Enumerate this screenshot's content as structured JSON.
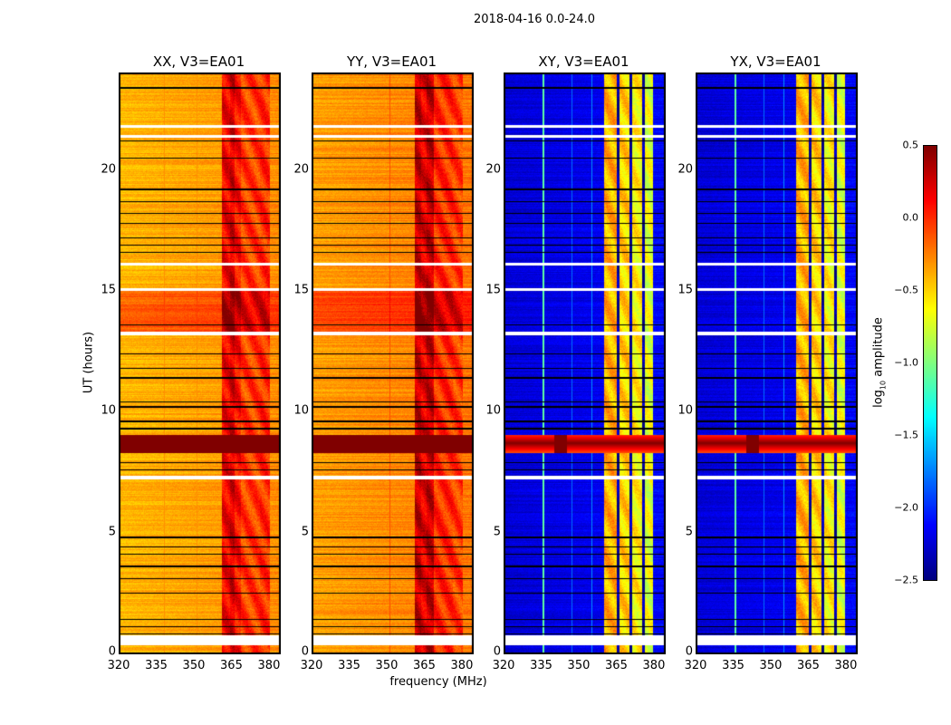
{
  "chart_data": {
    "type": "heatmap",
    "title": "2018-04-16 0.0-24.0",
    "xlabel": "frequency (MHz)",
    "ylabel": "UT (hours)",
    "xlim": [
      320,
      384
    ],
    "ylim": [
      0,
      24
    ],
    "xticks": [
      "320",
      "335",
      "350",
      "365",
      "380"
    ],
    "xtick_values": [
      320,
      335,
      350,
      365,
      380
    ],
    "yticks": [
      "0",
      "5",
      "10",
      "15",
      "20"
    ],
    "ytick_values": [
      0,
      5,
      10,
      15,
      20
    ],
    "colorbar": {
      "label_pre": "log",
      "label_sub": "10",
      "label_post": " amplitude",
      "vmin": -2.5,
      "vmax": 0.5,
      "ticks": [
        "0.5",
        "0.0",
        "−0.5",
        "−1.0",
        "−1.5",
        "−2.0",
        "−2.5"
      ],
      "tick_values": [
        0.5,
        0.0,
        -0.5,
        -1.0,
        -1.5,
        -2.0,
        -2.5
      ],
      "colormap": "jet"
    },
    "panels": [
      {
        "title": "XX, V3=EA01",
        "base": -0.42,
        "bands": [
          [
            361,
            364,
            0.15
          ],
          [
            364,
            366,
            0.25
          ],
          [
            366,
            368.5,
            0.1
          ],
          [
            368.5,
            376,
            -0.05
          ],
          [
            376,
            380,
            0.0
          ]
        ],
        "hot_hours": [
          [
            13.2,
            15.0,
            0.25
          ]
        ],
        "vstripes": [
          [
            338,
            -0.3
          ],
          [
            351,
            -0.3
          ]
        ]
      },
      {
        "title": "YY, V3=EA01",
        "base": -0.35,
        "bands": [
          [
            361,
            363.5,
            0.3
          ],
          [
            363.5,
            365.5,
            0.2
          ],
          [
            365.5,
            368.5,
            0.3
          ],
          [
            368.5,
            376,
            0.0
          ],
          [
            376,
            380,
            -0.05
          ]
        ],
        "hot_hours": [
          [
            13.2,
            15.0,
            0.25
          ]
        ],
        "vstripes": [
          [
            351,
            -0.1
          ]
        ]
      },
      {
        "title": "XY, V3=EA01",
        "base": -2.25,
        "bands": [
          [
            359.8,
            365,
            -0.4
          ],
          [
            365,
            366,
            -2.4
          ],
          [
            366,
            370,
            -0.5
          ],
          [
            370,
            371,
            -2.4
          ],
          [
            371,
            375,
            -0.6
          ],
          [
            375,
            376,
            -2.4
          ],
          [
            376,
            379.3,
            -0.7
          ]
        ],
        "hot_hours": [],
        "vstripes": [
          [
            335.5,
            -1.1
          ],
          [
            347,
            -1.8
          ],
          [
            355,
            -1.7
          ]
        ]
      },
      {
        "title": "YX, V3=EA01",
        "base": -2.25,
        "bands": [
          [
            359.8,
            365,
            -0.4
          ],
          [
            365,
            366,
            -2.4
          ],
          [
            366,
            370,
            -0.5
          ],
          [
            370,
            371,
            -2.4
          ],
          [
            371,
            375,
            -0.6
          ],
          [
            375,
            376,
            -2.4
          ],
          [
            376,
            379.3,
            -0.7
          ]
        ],
        "hot_hours": [],
        "vstripes": [
          [
            335.5,
            -1.1
          ],
          [
            347,
            -1.8
          ],
          [
            355,
            -1.7
          ]
        ]
      }
    ],
    "saturated_hours": [
      [
        8.3,
        9.05
      ]
    ],
    "flagged_hours": [
      [
        0.35,
        0.75
      ],
      [
        7.2,
        7.35
      ],
      [
        13.15,
        13.3
      ],
      [
        15.0,
        15.1
      ],
      [
        16.05,
        16.15
      ],
      [
        21.35,
        21.45
      ],
      [
        21.75,
        21.85
      ]
    ],
    "dark_lines_hours": [
      0.8,
      1.1,
      1.4,
      2.5,
      3.1,
      3.6,
      4.1,
      4.4,
      4.8,
      7.6,
      7.9,
      9.3,
      9.6,
      10.2,
      10.4,
      11.4,
      11.8,
      12.4,
      13.6,
      16.6,
      16.9,
      17.2,
      17.8,
      18.2,
      18.7,
      19.2,
      20.5,
      21.2,
      23.4
    ]
  }
}
